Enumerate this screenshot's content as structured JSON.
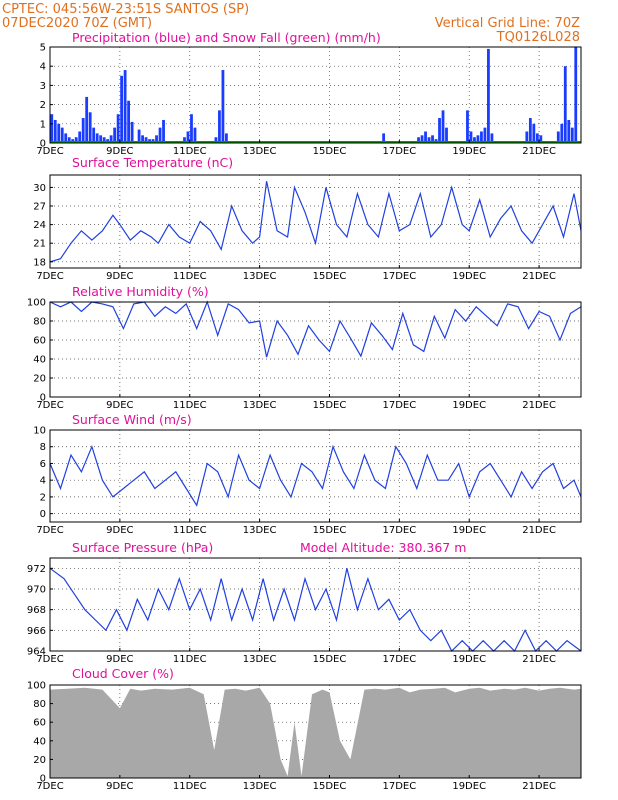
{
  "header": {
    "line1_left": "CPTEC:   045:56W-23:51S  SANTOS (SP)",
    "line2_left": "07DEC2020 70Z (GMT)",
    "line1_right": "Vertical Grid Line: 70Z",
    "line2_right": "TQ0126L028"
  },
  "colors": {
    "header": "#e07020",
    "panel_title": "#e0109a",
    "precip": "#1a3cff",
    "snow": "#00a000",
    "line": "#2040e0",
    "cloud": "#a8a8a8"
  },
  "chart_data": [
    {
      "type": "bar",
      "title": "Precipitation (blue) and Snow Fall (green) (mm/h)",
      "x_start": "07DEC",
      "x_labels": [
        "7DEC",
        "9DEC",
        "11DEC",
        "13DEC",
        "15DEC",
        "17DEC",
        "19DEC",
        "21DEC"
      ],
      "x_label_days": [
        0,
        2,
        4,
        6,
        8,
        10,
        12,
        14
      ],
      "x_range_days": [
        0,
        15.2
      ],
      "ylim": [
        0,
        5
      ],
      "yticks": [
        0,
        1,
        2,
        3,
        4,
        5
      ],
      "series": [
        {
          "name": "Precipitation",
          "x": [
            0.05,
            0.15,
            0.25,
            0.35,
            0.45,
            0.55,
            0.65,
            0.75,
            0.85,
            0.95,
            1.05,
            1.15,
            1.25,
            1.35,
            1.45,
            1.55,
            1.65,
            1.75,
            1.85,
            1.95,
            2.05,
            2.15,
            2.25,
            2.35,
            2.55,
            2.65,
            2.75,
            2.85,
            2.95,
            3.05,
            3.15,
            3.25,
            3.85,
            3.95,
            4.05,
            4.15,
            4.75,
            4.85,
            4.95,
            5.05,
            9.55,
            10.55,
            10.65,
            10.75,
            10.85,
            10.95,
            11.05,
            11.15,
            11.25,
            11.35,
            11.95,
            12.05,
            12.15,
            12.25,
            12.35,
            12.45,
            12.55,
            12.65,
            13.65,
            13.75,
            13.85,
            13.95,
            14.05,
            14.55,
            14.65,
            14.75,
            14.85,
            14.95,
            15.05
          ],
          "values": [
            1.5,
            1.2,
            1.0,
            0.8,
            0.5,
            0.3,
            0.2,
            0.3,
            0.6,
            1.3,
            2.4,
            1.6,
            0.8,
            0.5,
            0.4,
            0.3,
            0.2,
            0.4,
            0.8,
            1.5,
            3.5,
            3.8,
            2.2,
            1.1,
            0.7,
            0.4,
            0.3,
            0.2,
            0.2,
            0.4,
            0.8,
            1.2,
            0.3,
            0.6,
            1.5,
            0.8,
            0.3,
            1.7,
            3.8,
            0.5,
            0.5,
            0.3,
            0.4,
            0.6,
            0.3,
            0.4,
            0.2,
            1.3,
            1.7,
            0.8,
            1.7,
            0.6,
            0.3,
            0.4,
            0.6,
            0.8,
            4.9,
            0.5,
            0.6,
            1.3,
            1.0,
            0.5,
            0.4,
            0.6,
            1.0,
            4.0,
            1.2,
            0.8,
            5.0
          ]
        }
      ]
    },
    {
      "type": "line",
      "title": "Surface Temperature (nC)",
      "ylim": [
        17,
        32
      ],
      "yticks": [
        18,
        21,
        24,
        27,
        30
      ],
      "series": [
        {
          "name": "",
          "x": [
            0,
            0.3,
            0.6,
            0.9,
            1.2,
            1.5,
            1.8,
            2.0,
            2.3,
            2.6,
            2.9,
            3.1,
            3.4,
            3.7,
            4.0,
            4.3,
            4.6,
            4.9,
            5.2,
            5.5,
            5.8,
            6.0,
            6.2,
            6.5,
            6.8,
            7.0,
            7.3,
            7.6,
            7.9,
            8.2,
            8.5,
            8.8,
            9.1,
            9.4,
            9.7,
            10.0,
            10.3,
            10.6,
            10.9,
            11.2,
            11.5,
            11.8,
            12.0,
            12.3,
            12.6,
            12.9,
            13.2,
            13.5,
            13.8,
            14.1,
            14.4,
            14.7,
            15.0,
            15.2
          ],
          "values": [
            18,
            18.5,
            21,
            23,
            21.5,
            23,
            25.5,
            24,
            21.5,
            23,
            22,
            21,
            24,
            22,
            21,
            24.5,
            23,
            20,
            27,
            23,
            21,
            22,
            31,
            23,
            22,
            30,
            26,
            21,
            30,
            24,
            22,
            29,
            24,
            22,
            29,
            23,
            24,
            29,
            22,
            24,
            30,
            24,
            23,
            28,
            22,
            25,
            27,
            23,
            21,
            24,
            27,
            22,
            29,
            23
          ]
        }
      ]
    },
    {
      "type": "line",
      "title": "Relative Humidity (%)",
      "ylim": [
        0,
        100
      ],
      "yticks": [
        0,
        20,
        40,
        60,
        80,
        100
      ],
      "series": [
        {
          "name": "",
          "x": [
            0,
            0.3,
            0.6,
            0.9,
            1.2,
            1.5,
            1.8,
            2.1,
            2.4,
            2.7,
            3.0,
            3.3,
            3.6,
            3.9,
            4.2,
            4.5,
            4.8,
            5.1,
            5.4,
            5.7,
            6.0,
            6.2,
            6.5,
            6.8,
            7.1,
            7.4,
            7.7,
            8.0,
            8.3,
            8.6,
            8.9,
            9.2,
            9.5,
            9.8,
            10.1,
            10.4,
            10.7,
            11.0,
            11.3,
            11.6,
            11.9,
            12.2,
            12.5,
            12.8,
            13.1,
            13.4,
            13.7,
            14.0,
            14.3,
            14.6,
            14.9,
            15.2
          ],
          "values": [
            100,
            95,
            100,
            90,
            100,
            98,
            95,
            72,
            98,
            100,
            85,
            95,
            88,
            98,
            72,
            100,
            65,
            98,
            92,
            78,
            80,
            42,
            80,
            65,
            45,
            75,
            60,
            48,
            80,
            62,
            43,
            78,
            65,
            50,
            88,
            55,
            48,
            85,
            62,
            92,
            80,
            95,
            85,
            75,
            98,
            95,
            72,
            90,
            85,
            60,
            88,
            95
          ]
        }
      ]
    },
    {
      "type": "line",
      "title": "Surface Wind (m/s)",
      "ylim": [
        -1,
        10
      ],
      "yticks": [
        0,
        2,
        4,
        6,
        8,
        10
      ],
      "series": [
        {
          "name": "",
          "x": [
            0,
            0.3,
            0.6,
            0.9,
            1.2,
            1.5,
            1.8,
            2.1,
            2.4,
            2.7,
            3.0,
            3.3,
            3.6,
            3.9,
            4.2,
            4.5,
            4.8,
            5.1,
            5.4,
            5.7,
            6.0,
            6.3,
            6.6,
            6.9,
            7.2,
            7.5,
            7.8,
            8.1,
            8.4,
            8.7,
            9.0,
            9.3,
            9.6,
            9.9,
            10.2,
            10.5,
            10.8,
            11.1,
            11.4,
            11.7,
            12.0,
            12.3,
            12.6,
            12.9,
            13.2,
            13.5,
            13.8,
            14.1,
            14.4,
            14.7,
            15.0,
            15.2
          ],
          "values": [
            6,
            3,
            7,
            5,
            8,
            4,
            2,
            3,
            4,
            5,
            3,
            4,
            5,
            3,
            1,
            6,
            5,
            2,
            7,
            4,
            3,
            7,
            4,
            2,
            6,
            5,
            3,
            8,
            5,
            3,
            7,
            4,
            3,
            8,
            6,
            3,
            7,
            4,
            4,
            6,
            2,
            5,
            6,
            4,
            2,
            5,
            3,
            5,
            6,
            3,
            4,
            2
          ]
        }
      ]
    },
    {
      "type": "line",
      "title": "Surface Pressure (hPa)",
      "annotation": "Model Altitude: 380.367 m",
      "ylim": [
        964,
        973
      ],
      "yticks": [
        964,
        966,
        968,
        970,
        972
      ],
      "series": [
        {
          "name": "",
          "x": [
            0,
            0.4,
            0.8,
            1.0,
            1.3,
            1.6,
            1.9,
            2.2,
            2.5,
            2.8,
            3.1,
            3.4,
            3.7,
            4.0,
            4.3,
            4.6,
            4.9,
            5.2,
            5.5,
            5.8,
            6.1,
            6.4,
            6.7,
            7.0,
            7.3,
            7.6,
            7.9,
            8.2,
            8.5,
            8.8,
            9.1,
            9.4,
            9.7,
            10.0,
            10.3,
            10.6,
            10.9,
            11.2,
            11.5,
            11.8,
            12.1,
            12.4,
            12.7,
            13.0,
            13.3,
            13.6,
            13.9,
            14.2,
            14.5,
            14.8,
            15.2
          ],
          "values": [
            972,
            971,
            969,
            968,
            967,
            966,
            968,
            966,
            969,
            967,
            970,
            968,
            971,
            968,
            970,
            967,
            971,
            967,
            970,
            967,
            971,
            967,
            970,
            967,
            971,
            968,
            970,
            967,
            972,
            968,
            971,
            968,
            969,
            967,
            968,
            966,
            965,
            966,
            964,
            965,
            964,
            965,
            964,
            965,
            964,
            966,
            964,
            965,
            964,
            965,
            964
          ]
        }
      ]
    },
    {
      "type": "area",
      "title": "Cloud Cover (%)",
      "ylim": [
        0,
        100
      ],
      "yticks": [
        0,
        20,
        40,
        60,
        80,
        100
      ],
      "series": [
        {
          "name": "",
          "x": [
            0,
            0.5,
            1.0,
            1.5,
            2.0,
            2.3,
            2.6,
            3.0,
            3.5,
            4.0,
            4.4,
            4.7,
            5.0,
            5.3,
            5.6,
            6.0,
            6.3,
            6.6,
            6.8,
            7.0,
            7.2,
            7.5,
            7.8,
            8.0,
            8.3,
            8.6,
            9.0,
            9.3,
            9.6,
            10.0,
            10.3,
            10.6,
            11.0,
            11.3,
            11.6,
            12.0,
            12.3,
            12.6,
            13.0,
            13.3,
            13.6,
            14.0,
            14.3,
            14.6,
            15.0,
            15.2
          ],
          "values": [
            95,
            96,
            97,
            95,
            75,
            96,
            94,
            96,
            95,
            97,
            90,
            30,
            95,
            96,
            94,
            97,
            80,
            20,
            2,
            60,
            2,
            90,
            95,
            92,
            40,
            20,
            95,
            96,
            95,
            97,
            92,
            95,
            96,
            97,
            92,
            96,
            97,
            94,
            96,
            95,
            97,
            94,
            96,
            97,
            95,
            96
          ]
        }
      ]
    }
  ]
}
